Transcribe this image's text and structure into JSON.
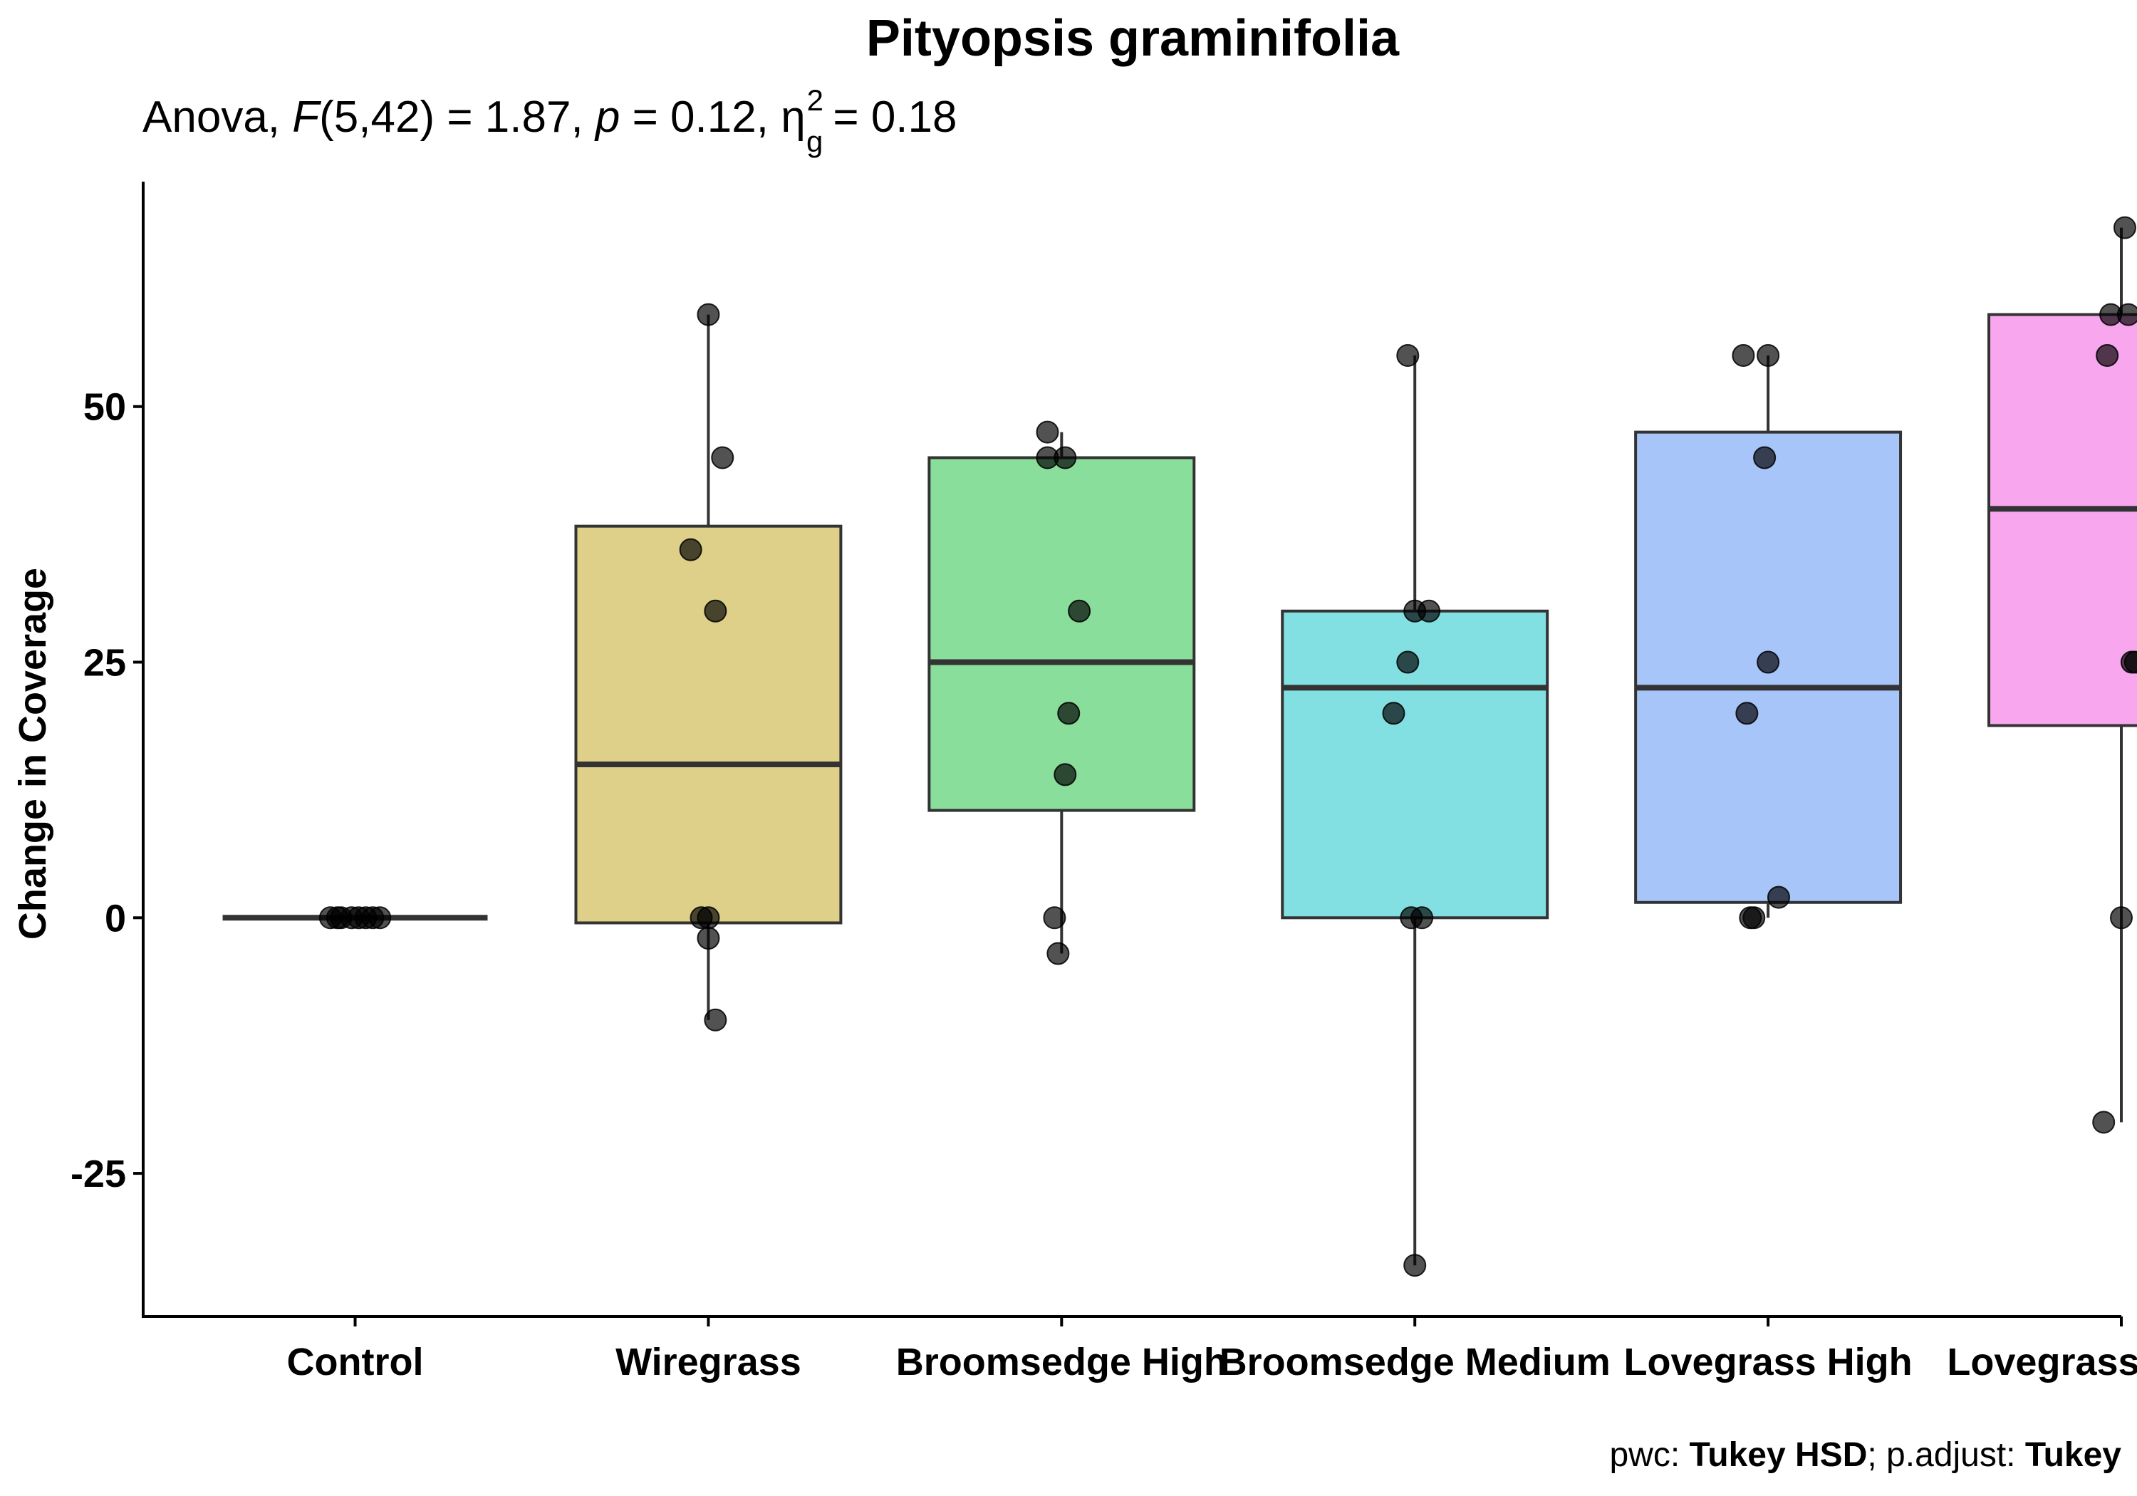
{
  "chart_data": {
    "type": "boxplot",
    "title": "Pityopsis graminifolia",
    "subtitle": {
      "test": "Anova,",
      "stat_symbol": "F",
      "df": "(5,42)",
      "stat_value": "= 1.87,",
      "p_symbol": "p",
      "p_value": "= 0.12,",
      "effect_symbol": "η",
      "effect_sub": "g",
      "effect_sup": "2",
      "effect_value": "= 0.18"
    },
    "ylabel": "Change in Coverage",
    "xlabel": "",
    "ylim": [
      -39,
      72
    ],
    "yticks": [
      -25,
      0,
      25,
      50
    ],
    "grid": false,
    "legend": "none",
    "categories": [
      "Control",
      "Wiregrass",
      "Broomsedge High",
      "Broomsedge Medium",
      "Lovegrass High",
      "Lovegrass Medium"
    ],
    "colors": [
      "#ffffff",
      "#C9B03A",
      "#3CC85A",
      "#2FCBCF",
      "#6E9FF7",
      "#F46AE3"
    ],
    "boxes": [
      {
        "q1": 0,
        "median": 0,
        "q3": 0,
        "whisker_low": 0,
        "whisker_high": 0
      },
      {
        "q1": -0.5,
        "median": 15,
        "q3": 38.3,
        "whisker_low": -10,
        "whisker_high": 59
      },
      {
        "q1": 10.5,
        "median": 25,
        "q3": 45,
        "whisker_low": -3.5,
        "whisker_high": 47.5
      },
      {
        "q1": 0,
        "median": 22.5,
        "q3": 30,
        "whisker_low": -34,
        "whisker_high": 55
      },
      {
        "q1": 1.5,
        "median": 22.5,
        "q3": 47.5,
        "whisker_low": 0,
        "whisker_high": 55
      },
      {
        "q1": 18.8,
        "median": 40,
        "q3": 59,
        "whisker_low": -20,
        "whisker_high": 67.5
      }
    ],
    "points": [
      {
        "x": 0,
        "y": 0,
        "jitter": -0.07
      },
      {
        "x": 0,
        "y": 0,
        "jitter": -0.04
      },
      {
        "x": 0,
        "y": 0,
        "jitter": -0.01
      },
      {
        "x": 0,
        "y": 0,
        "jitter": 0.01
      },
      {
        "x": 0,
        "y": 0,
        "jitter": 0.03
      },
      {
        "x": 0,
        "y": 0,
        "jitter": 0.05
      },
      {
        "x": 0,
        "y": 0,
        "jitter": 0.07
      },
      {
        "x": 0,
        "y": 0,
        "jitter": -0.05
      },
      {
        "x": 1,
        "y": 59,
        "jitter": 0.0
      },
      {
        "x": 1,
        "y": 45,
        "jitter": 0.04
      },
      {
        "x": 1,
        "y": 36,
        "jitter": -0.05
      },
      {
        "x": 1,
        "y": 30,
        "jitter": 0.02
      },
      {
        "x": 1,
        "y": 0,
        "jitter": -0.02
      },
      {
        "x": 1,
        "y": 0,
        "jitter": 0.0
      },
      {
        "x": 1,
        "y": -2,
        "jitter": 0.0
      },
      {
        "x": 1,
        "y": -10,
        "jitter": 0.02
      },
      {
        "x": 2,
        "y": 47.5,
        "jitter": -0.04
      },
      {
        "x": 2,
        "y": 45,
        "jitter": -0.04
      },
      {
        "x": 2,
        "y": 45,
        "jitter": 0.01
      },
      {
        "x": 2,
        "y": 30,
        "jitter": 0.05
      },
      {
        "x": 2,
        "y": 20,
        "jitter": 0.02
      },
      {
        "x": 2,
        "y": 14,
        "jitter": 0.01
      },
      {
        "x": 2,
        "y": 0,
        "jitter": -0.02
      },
      {
        "x": 2,
        "y": -3.5,
        "jitter": -0.01
      },
      {
        "x": 3,
        "y": 55,
        "jitter": -0.02
      },
      {
        "x": 3,
        "y": 30,
        "jitter": 0.0
      },
      {
        "x": 3,
        "y": 30,
        "jitter": 0.04
      },
      {
        "x": 3,
        "y": 25,
        "jitter": -0.02
      },
      {
        "x": 3,
        "y": 20,
        "jitter": -0.06
      },
      {
        "x": 3,
        "y": 0,
        "jitter": -0.01
      },
      {
        "x": 3,
        "y": 0,
        "jitter": 0.02
      },
      {
        "x": 3,
        "y": -34,
        "jitter": 0.0
      },
      {
        "x": 4,
        "y": 55,
        "jitter": -0.07
      },
      {
        "x": 4,
        "y": 55,
        "jitter": 0.0
      },
      {
        "x": 4,
        "y": 45,
        "jitter": -0.01
      },
      {
        "x": 4,
        "y": 25,
        "jitter": 0.0
      },
      {
        "x": 4,
        "y": 20,
        "jitter": -0.06
      },
      {
        "x": 4,
        "y": 2,
        "jitter": 0.03
      },
      {
        "x": 4,
        "y": 0,
        "jitter": -0.05
      },
      {
        "x": 4,
        "y": 0,
        "jitter": -0.04
      },
      {
        "x": 5,
        "y": 67.5,
        "jitter": 0.01
      },
      {
        "x": 5,
        "y": 59,
        "jitter": -0.03
      },
      {
        "x": 5,
        "y": 59,
        "jitter": 0.02
      },
      {
        "x": 5,
        "y": 55,
        "jitter": -0.04
      },
      {
        "x": 5,
        "y": 25,
        "jitter": 0.03
      },
      {
        "x": 5,
        "y": 25,
        "jitter": 0.04
      },
      {
        "x": 5,
        "y": 0,
        "jitter": 0.0
      },
      {
        "x": 5,
        "y": -20,
        "jitter": -0.05
      }
    ]
  },
  "caption": {
    "pwc_label": "pwc: ",
    "pwc_value": "Tukey HSD",
    "sep": "; p.adjust: ",
    "adjust_value": "Tukey"
  }
}
